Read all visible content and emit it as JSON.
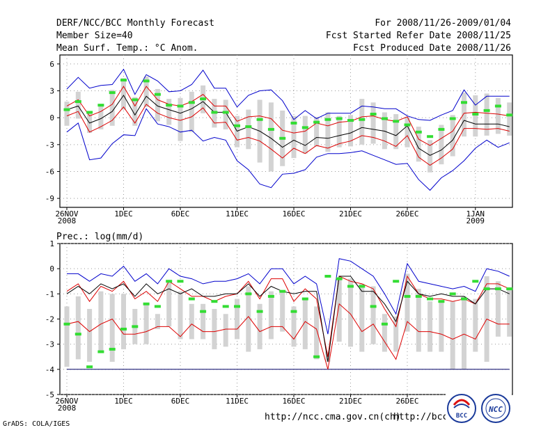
{
  "header": {
    "title": "DERF/NCC/BCC Monthly Forecast",
    "member": "Member Size=40",
    "variable": "Mean Surf. Temp.: °C Anom.",
    "period": "For 2008/11/26-2009/01/04",
    "started": "Fcst Started Refer Date 2008/11/25",
    "produced": "Fcst Produced Date 2008/11/26"
  },
  "footer": {
    "grads": "GrADS: COLA/IGES",
    "url1": "http://ncc.cma.gov.cn(ch)",
    "url2": "http://bcc.cma.gov.cn(en)",
    "logo_bcc": "BCC",
    "logo_ncc": "NCC"
  },
  "colors": {
    "median": "#000000",
    "range": "#0000cc",
    "spread": "#dd0000",
    "obs": "#33dd33",
    "box": "#d3d3d3"
  },
  "chart_data": [
    {
      "type": "line",
      "title": "Mean Surf. Temp.: °C Anom.",
      "xlabel": "",
      "ylabel": "",
      "ylim": [
        -10,
        7
      ],
      "yticks": [
        6,
        3,
        0,
        -3,
        -6,
        -9
      ],
      "x_tick_labels": [
        {
          "day": 1,
          "label": "26NOV",
          "sub": "2008"
        },
        {
          "day": 6,
          "label": "1DEC",
          "sub": ""
        },
        {
          "day": 11,
          "label": "6DEC",
          "sub": ""
        },
        {
          "day": 16,
          "label": "11DEC",
          "sub": ""
        },
        {
          "day": 21,
          "label": "16DEC",
          "sub": ""
        },
        {
          "day": 26,
          "label": "21DEC",
          "sub": ""
        },
        {
          "day": 31,
          "label": "26DEC",
          "sub": ""
        },
        {
          "day": 37,
          "label": "1JAN",
          "sub": "2009"
        }
      ],
      "series": [
        {
          "name": "max",
          "color": "#0000cc",
          "values": [
            3.2,
            4.5,
            3.3,
            3.6,
            3.7,
            5.4,
            2.6,
            4.8,
            4.1,
            2.9,
            3.0,
            3.7,
            5.3,
            3.3,
            3.3,
            1.2,
            2.5,
            3.0,
            3.1,
            1.9,
            -0.2,
            0.8,
            -0.1,
            0.5,
            0.5,
            0.5,
            1.3,
            1.2,
            1.0,
            1.0,
            0.2,
            -0.2,
            -0.3,
            0.3,
            0.8,
            3.1,
            1.4,
            2.4,
            2.4,
            2.4
          ]
        },
        {
          "name": "upper",
          "color": "#dd0000",
          "values": [
            1.3,
            2.0,
            0.2,
            0.7,
            1.5,
            3.5,
            1.3,
            3.5,
            2.0,
            1.5,
            1.3,
            1.8,
            2.6,
            1.3,
            1.3,
            -0.4,
            0.1,
            0.2,
            -0.1,
            -1.4,
            -1.7,
            -1.5,
            -0.6,
            -0.9,
            -0.5,
            -0.4,
            0.1,
            0.2,
            -0.2,
            -0.4,
            0.1,
            -2.4,
            -3.1,
            -2.3,
            -1.5,
            0.5,
            0.6,
            0.5,
            0.4,
            0.2
          ]
        },
        {
          "name": "median",
          "color": "#000000",
          "values": [
            0.9,
            1.3,
            -0.6,
            -0.1,
            0.7,
            2.5,
            0.3,
            2.4,
            1.3,
            0.9,
            0.5,
            1.0,
            1.8,
            0.6,
            0.6,
            -1.5,
            -1.0,
            -1.5,
            -2.3,
            -3.3,
            -2.5,
            -3.1,
            -2.2,
            -2.3,
            -2.0,
            -1.7,
            -1.1,
            -1.3,
            -1.5,
            -2.0,
            -0.9,
            -3.4,
            -4.2,
            -3.6,
            -2.5,
            -0.3,
            -0.7,
            -0.7,
            -0.7,
            -1.0
          ]
        },
        {
          "name": "lower",
          "color": "#dd0000",
          "values": [
            0.2,
            0.7,
            -1.6,
            -1.0,
            -0.3,
            1.2,
            -0.6,
            1.5,
            0.5,
            0.0,
            -0.3,
            0.1,
            1.1,
            -0.6,
            -0.5,
            -2.5,
            -2.2,
            -2.6,
            -3.5,
            -4.5,
            -3.4,
            -4.0,
            -3.1,
            -3.4,
            -2.9,
            -2.6,
            -2.0,
            -2.2,
            -2.6,
            -3.2,
            -2.0,
            -4.4,
            -5.3,
            -4.5,
            -3.5,
            -1.2,
            -1.2,
            -1.3,
            -1.2,
            -1.5
          ]
        },
        {
          "name": "min",
          "color": "#0000cc",
          "values": [
            -1.6,
            -0.6,
            -4.7,
            -4.5,
            -2.9,
            -1.9,
            -2.0,
            1.0,
            -0.7,
            -1.0,
            -1.6,
            -1.4,
            -2.6,
            -2.2,
            -2.5,
            -4.8,
            -5.8,
            -7.4,
            -7.8,
            -6.3,
            -6.2,
            -5.8,
            -4.4,
            -4.0,
            -4.0,
            -3.9,
            -3.7,
            -4.2,
            -4.7,
            -5.2,
            -5.1,
            -6.9,
            -8.1,
            -6.7,
            -5.9,
            -4.8,
            -3.4,
            -2.5,
            -3.3,
            -2.8
          ]
        },
        {
          "name": "observed",
          "color": "#33dd33",
          "values": [
            0.9,
            1.8,
            0.6,
            1.4,
            2.8,
            4.2,
            2.0,
            4.1,
            2.6,
            1.4,
            1.3,
            1.7,
            2.1,
            0.6,
            0.6,
            -0.9,
            -1.0,
            -0.2,
            -1.3,
            -2.3,
            -0.6,
            -1.1,
            -0.5,
            -0.2,
            -0.1,
            -0.3,
            -0.2,
            0.4,
            -0.1,
            -0.4,
            -0.8,
            -1.6,
            -2.1,
            -1.3,
            -0.1,
            1.7,
            0.4,
            0.8,
            1.3,
            0.3
          ]
        },
        {
          "name": "box_top",
          "color": "#d3d3d3",
          "values": [
            1.8,
            2.9,
            0.5,
            1.4,
            3.1,
            4.4,
            2.3,
            4.6,
            3.2,
            2.1,
            2.2,
            2.9,
            3.6,
            2.1,
            2.0,
            0.2,
            0.9,
            2.0,
            1.7,
            0.8,
            0.2,
            0.2,
            0.1,
            0.6,
            0.2,
            0.3,
            2.1,
            1.7,
            0.6,
            0.4,
            0.1,
            -1.0,
            -2.5,
            -0.8,
            0.3,
            2.8,
            2.5,
            2.7,
            2.2,
            1.7
          ]
        },
        {
          "name": "box_bottom",
          "color": "#d3d3d3",
          "values": [
            -0.9,
            -0.1,
            -1.7,
            -1.3,
            -0.9,
            0.9,
            -0.9,
            1.2,
            -0.4,
            -0.8,
            -2.6,
            -1.6,
            0.5,
            -1.1,
            -1.3,
            -3.3,
            -3.5,
            -5.0,
            -6.0,
            -5.4,
            -4.5,
            -4.0,
            -3.2,
            -3.8,
            -3.3,
            -3.2,
            -3.0,
            -2.9,
            -3.5,
            -3.5,
            -3.3,
            -4.9,
            -6.1,
            -5.2,
            -4.3,
            -2.1,
            -2.1,
            -2.0,
            -1.8,
            -2.0
          ]
        }
      ]
    },
    {
      "type": "line",
      "title": "Prec.: log(mm/d)",
      "xlabel": "",
      "ylabel": "",
      "ylim": [
        -5,
        1
      ],
      "yticks": [
        1,
        0,
        -1,
        -2,
        -3,
        -4,
        -5
      ],
      "x_tick_labels": [
        {
          "day": 1,
          "label": "26NOV",
          "sub": "2008"
        },
        {
          "day": 6,
          "label": "1DEC",
          "sub": ""
        },
        {
          "day": 11,
          "label": "6DEC",
          "sub": ""
        },
        {
          "day": 16,
          "label": "11DEC",
          "sub": ""
        },
        {
          "day": 21,
          "label": "16DEC",
          "sub": ""
        },
        {
          "day": 26,
          "label": "21DEC",
          "sub": ""
        },
        {
          "day": 31,
          "label": "26DEC",
          "sub": ""
        }
      ],
      "series": [
        {
          "name": "max",
          "color": "#0000cc",
          "values": [
            -0.2,
            -0.2,
            -0.5,
            -0.2,
            -0.3,
            0.1,
            -0.5,
            -0.2,
            -0.6,
            0.0,
            -0.3,
            -0.4,
            -0.6,
            -0.5,
            -0.5,
            -0.4,
            -0.2,
            -0.6,
            0.0,
            0.0,
            -0.6,
            -0.3,
            -0.6,
            -2.6,
            0.4,
            0.3,
            0.0,
            -0.3,
            -1.0,
            -1.8,
            0.2,
            -0.5,
            -0.6,
            -0.7,
            -0.8,
            -0.7,
            -0.9,
            0.0,
            -0.1,
            -0.3
          ]
        },
        {
          "name": "upper",
          "color": "#dd0000",
          "values": [
            -0.9,
            -0.6,
            -1.3,
            -0.7,
            -0.9,
            -0.5,
            -1.2,
            -0.9,
            -1.3,
            -0.5,
            -0.8,
            -1.1,
            -1.1,
            -1.3,
            -1.1,
            -1.0,
            -0.5,
            -1.2,
            -0.4,
            -0.4,
            -1.3,
            -0.8,
            -1.2,
            -3.5,
            -0.3,
            -0.5,
            -0.6,
            -0.8,
            -1.6,
            -2.3,
            -0.3,
            -1.0,
            -1.2,
            -1.2,
            -1.3,
            -1.2,
            -1.4,
            -0.6,
            -0.6,
            -0.8
          ]
        },
        {
          "name": "median",
          "color": "#000000",
          "values": [
            -1.0,
            -0.7,
            -1.0,
            -0.6,
            -0.8,
            -0.6,
            -1.1,
            -0.6,
            -1.0,
            -0.8,
            -1.0,
            -0.8,
            -1.1,
            -1.1,
            -1.0,
            -1.0,
            -0.6,
            -1.1,
            -0.7,
            -0.9,
            -1.0,
            -0.9,
            -0.9,
            -3.7,
            -0.3,
            -0.3,
            -0.9,
            -0.9,
            -1.4,
            -2.1,
            -0.5,
            -1.0,
            -1.1,
            -1.0,
            -1.1,
            -1.1,
            -1.4,
            -0.8,
            -0.8,
            -1.0
          ]
        },
        {
          "name": "lower",
          "color": "#dd0000",
          "values": [
            -2.2,
            -2.1,
            -2.5,
            -2.2,
            -2.0,
            -2.6,
            -2.6,
            -2.5,
            -2.3,
            -2.3,
            -2.7,
            -2.2,
            -2.5,
            -2.5,
            -2.4,
            -2.4,
            -1.9,
            -2.5,
            -2.3,
            -2.3,
            -2.8,
            -2.1,
            -2.4,
            -4.0,
            -1.4,
            -1.8,
            -2.5,
            -2.2,
            -2.9,
            -3.6,
            -2.1,
            -2.5,
            -2.5,
            -2.6,
            -2.8,
            -2.6,
            -2.8,
            -2.0,
            -2.2,
            -2.2
          ]
        },
        {
          "name": "min",
          "color": "#000066",
          "values": [
            -4.0,
            -4.0,
            -4.0,
            -4.0,
            -4.0,
            -4.0,
            -4.0,
            -4.0,
            -4.0,
            -4.0,
            -4.0,
            -4.0,
            -4.0,
            -4.0,
            -4.0,
            -4.0,
            -4.0,
            -4.0,
            -4.0,
            -4.0,
            -4.0,
            -4.0,
            -4.0,
            -4.0,
            -4.0,
            -4.0,
            -4.0,
            -4.0,
            -4.0,
            -4.0,
            -4.0,
            -4.0,
            -4.0,
            -4.0,
            -4.0,
            -4.0,
            -4.0,
            -4.0,
            -4.0,
            -4.0
          ]
        },
        {
          "name": "observed",
          "color": "#33dd33",
          "values": [
            -2.2,
            -2.6,
            -3.9,
            -3.3,
            -3.2,
            -2.4,
            -2.3,
            -1.4,
            -1.5,
            -0.5,
            -0.5,
            -1.2,
            -1.7,
            -1.3,
            -1.5,
            -1.5,
            -1.0,
            -1.7,
            -1.1,
            -0.9,
            -1.7,
            -1.2,
            -3.5,
            -0.3,
            -0.4,
            -0.7,
            -0.7,
            -1.5,
            -2.2,
            -0.5,
            -1.1,
            -1.1,
            -1.2,
            -1.3,
            -1.0,
            -1.2,
            -0.5,
            -0.8,
            -0.8,
            -0.8
          ]
        },
        {
          "name": "box_top",
          "color": "#d3d3d3",
          "values": [
            -1.5,
            -1.1,
            -1.6,
            -0.9,
            -1.0,
            -1.0,
            -1.6,
            -1.4,
            -1.8,
            -0.5,
            -0.9,
            -1.4,
            -1.4,
            -1.6,
            -1.8,
            -1.2,
            -0.7,
            -1.4,
            -0.9,
            -0.9,
            -1.5,
            -1.2,
            -1.5,
            -3.3,
            -0.4,
            -0.4,
            -0.6,
            -0.7,
            -1.8,
            -1.9,
            -0.2,
            -0.8,
            -1.3,
            -1.3,
            -1.3,
            -1.1,
            -1.2,
            -0.3,
            -0.5,
            -0.8
          ]
        },
        {
          "name": "box_bottom",
          "color": "#d3d3d3",
          "values": [
            -3.9,
            -3.6,
            -3.7,
            -3.3,
            -3.7,
            -3.2,
            -3.0,
            -3.0,
            -2.4,
            -2.3,
            -2.8,
            -2.8,
            -2.8,
            -3.2,
            -3.1,
            -2.8,
            -3.3,
            -3.2,
            -2.8,
            -2.5,
            -3.1,
            -3.2,
            -3.6,
            -3.7,
            -2.9,
            -3.1,
            -3.3,
            -3.0,
            -3.3,
            -3.3,
            -2.5,
            -3.3,
            -3.3,
            -3.3,
            -4.0,
            -4.0,
            -3.3,
            -3.7,
            -2.7,
            -2.7
          ]
        }
      ]
    }
  ]
}
